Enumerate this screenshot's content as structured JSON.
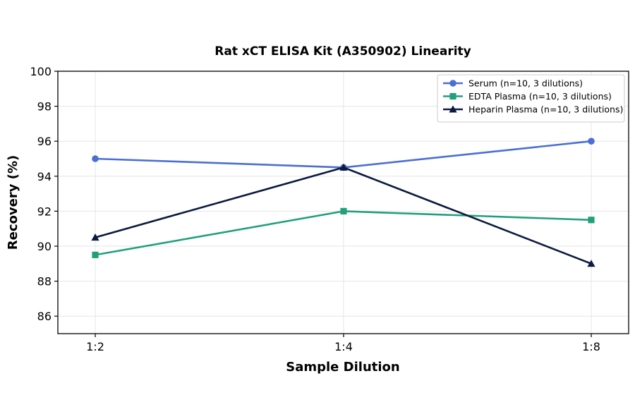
{
  "chart_data": {
    "type": "line",
    "title": "Rat xCT ELISA Kit (A350902) Linearity",
    "xlabel": "Sample Dilution",
    "ylabel": "Recovery (%)",
    "categories": [
      "1:2",
      "1:4",
      "1:8"
    ],
    "ylim": [
      85,
      100
    ],
    "yticks": [
      86,
      88,
      90,
      92,
      94,
      96,
      98,
      100
    ],
    "grid": true,
    "legend_position": "top-right",
    "series": [
      {
        "name": "Serum (n=10, 3 dilutions)",
        "values": [
          95.0,
          94.5,
          96.0
        ],
        "color": "#4a6fd4",
        "marker": "circle"
      },
      {
        "name": "EDTA Plasma (n=10, 3 dilutions)",
        "values": [
          89.5,
          92.0,
          91.5
        ],
        "color": "#22a07a",
        "marker": "square"
      },
      {
        "name": "Heparin Plasma (n=10, 3 dilutions)",
        "values": [
          90.5,
          94.5,
          89.0
        ],
        "color": "#0b1a3f",
        "marker": "triangle"
      }
    ]
  }
}
